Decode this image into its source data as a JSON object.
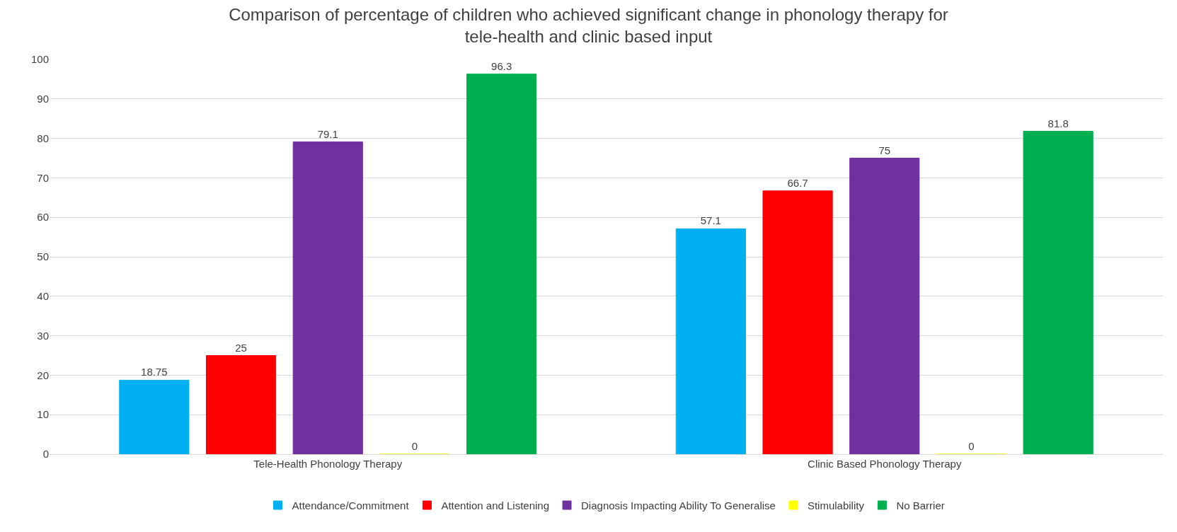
{
  "chart_data": {
    "type": "bar",
    "title": "Comparison of percentage of children who achieved significant change in phonology therapy for\ntele-health and clinic based input",
    "categories": [
      "Tele-Health Phonology Therapy",
      "Clinic Based Phonology Therapy"
    ],
    "series": [
      {
        "name": "Attendance/Commitment",
        "color": "#00b0f0",
        "values": [
          18.75,
          57.1
        ]
      },
      {
        "name": "Attention and Listening",
        "color": "#ff0000",
        "values": [
          25,
          66.7
        ]
      },
      {
        "name": "Diagnosis Impacting Ability To Generalise",
        "color": "#7030a0",
        "values": [
          79.1,
          75
        ]
      },
      {
        "name": "Stimulability",
        "color": "#ffff00",
        "values": [
          0,
          0
        ]
      },
      {
        "name": "No Barrier",
        "color": "#00b050",
        "values": [
          96.3,
          81.8
        ]
      }
    ],
    "ylim": [
      0,
      100
    ],
    "yticks": [
      0,
      10,
      20,
      30,
      40,
      50,
      60,
      70,
      80,
      90,
      100
    ],
    "grid": "y",
    "legend": "bottom",
    "data_labels": true
  }
}
